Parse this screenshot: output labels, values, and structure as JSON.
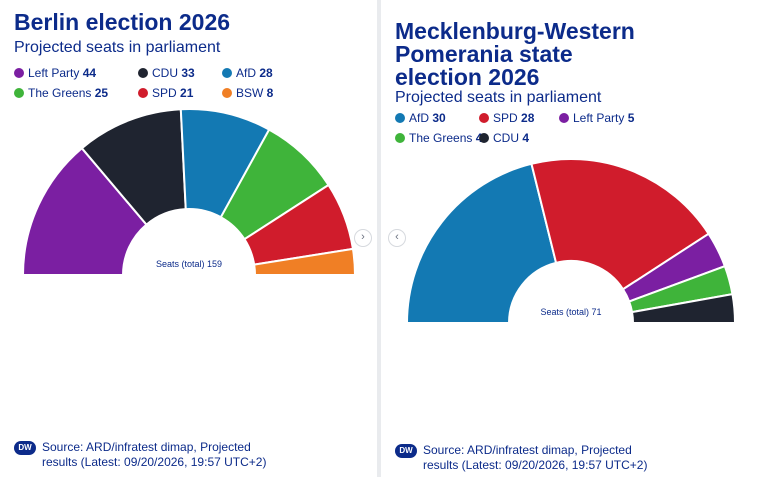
{
  "colors": {
    "title": "#0c2b8a",
    "Left Party": "#7b1fa2",
    "CDU": "#1f2430",
    "AfD": "#1379b3",
    "The Greens": "#3fb43a",
    "SPD": "#d01c2c",
    "BSW": "#f07f25"
  },
  "nav": {
    "next_glyph": "›",
    "prev_glyph": "‹"
  },
  "chart_data": [
    {
      "type": "pie",
      "subtype": "half-donut parliament chart",
      "title": "Berlin election 2026",
      "subtitle": "Projected seats in parliament",
      "total_label": "Seats (total) 159",
      "total": 159,
      "series": [
        {
          "name": "Left Party",
          "value": 44
        },
        {
          "name": "CDU",
          "value": 33
        },
        {
          "name": "AfD",
          "value": 28
        },
        {
          "name": "The Greens",
          "value": 25
        },
        {
          "name": "SPD",
          "value": 21
        },
        {
          "name": "BSW",
          "value": 8
        }
      ],
      "legend_order": [
        "Left Party",
        "CDU",
        "AfD",
        "The Greens",
        "SPD",
        "BSW"
      ],
      "legend_position": "top",
      "source": "Source: ARD/infratest dimap, Projected",
      "source_line2": "results (Latest: 09/20/2026, 19:57 UTC+2)",
      "logo_text": "DW"
    },
    {
      "type": "pie",
      "subtype": "half-donut parliament chart",
      "title_lines": [
        "Mecklenburg-Western",
        "Pomerania state",
        "election 2026"
      ],
      "subtitle": "Projected seats in parliament",
      "total_label": "Seats (total) 71",
      "total": 71,
      "series": [
        {
          "name": "AfD",
          "value": 30
        },
        {
          "name": "SPD",
          "value": 28
        },
        {
          "name": "Left Party",
          "value": 5
        },
        {
          "name": "The Greens",
          "value": 4
        },
        {
          "name": "CDU",
          "value": 4
        }
      ],
      "legend_order": [
        "AfD",
        "SPD",
        "Left Party",
        "The Greens",
        "CDU"
      ],
      "legend_position": "top",
      "source": "Source: ARD/infratest dimap, Projected",
      "source_line2": "results (Latest: 09/20/2026, 19:57 UTC+2)",
      "logo_text": "DW"
    }
  ]
}
